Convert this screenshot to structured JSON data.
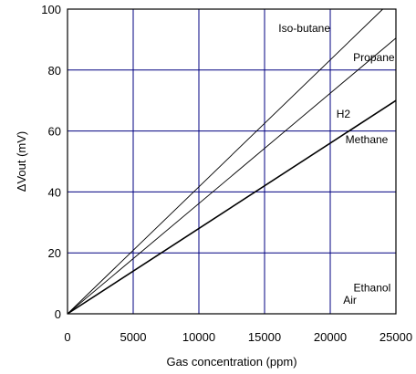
{
  "chart_data": {
    "type": "line",
    "title": "",
    "xlabel": "Gas concentration (ppm)",
    "ylabel": "ΔVout (mV)",
    "xlim": [
      0,
      25000
    ],
    "ylim": [
      0,
      100
    ],
    "x_ticks": [
      0,
      5000,
      10000,
      15000,
      20000,
      25000
    ],
    "y_ticks": [
      0,
      20,
      40,
      60,
      80,
      100
    ],
    "x_tick_labels": [
      "0",
      "5000",
      "10000",
      "15000",
      "20000",
      "25000"
    ],
    "y_tick_labels": [
      "0",
      "20",
      "40",
      "60",
      "80",
      "100"
    ],
    "grid": true,
    "colors": {
      "grid": "#000080",
      "line": "#000000",
      "axis": "#000000"
    },
    "series": [
      {
        "name": "Iso-butane",
        "x": [
          0,
          24000
        ],
        "y": [
          0,
          100
        ],
        "style": "thin"
      },
      {
        "name": "Propane",
        "x": [
          0,
          25000
        ],
        "y": [
          0,
          90.5
        ],
        "style": "thin"
      },
      {
        "name": "H2",
        "x": [
          0,
          25000
        ],
        "y": [
          0,
          70
        ],
        "style": "thick"
      },
      {
        "name": "Methane",
        "x": [
          0,
          25000
        ],
        "y": [
          0,
          70
        ],
        "style": "thick"
      },
      {
        "name": "Ethanol",
        "x": [
          0,
          25000
        ],
        "y": [
          0,
          0
        ],
        "style": "none"
      },
      {
        "name": "Air",
        "x": [
          0,
          25000
        ],
        "y": [
          0,
          0
        ],
        "style": "none"
      }
    ],
    "annotations": [
      {
        "text": "Iso-butane",
        "x": 20000,
        "y": 92.5,
        "anchor": "end"
      },
      {
        "text": "Propane",
        "x": 24900,
        "y": 83,
        "anchor": "end"
      },
      {
        "text": "H2",
        "x": 21000,
        "y": 64.3,
        "anchor": "middle"
      },
      {
        "text": "Methane",
        "x": 24400,
        "y": 56,
        "anchor": "end"
      },
      {
        "text": "Ethanol",
        "x": 24600,
        "y": 7.3,
        "anchor": "end"
      },
      {
        "text": "Air",
        "x": 21500,
        "y": 3.3,
        "anchor": "middle"
      }
    ]
  }
}
